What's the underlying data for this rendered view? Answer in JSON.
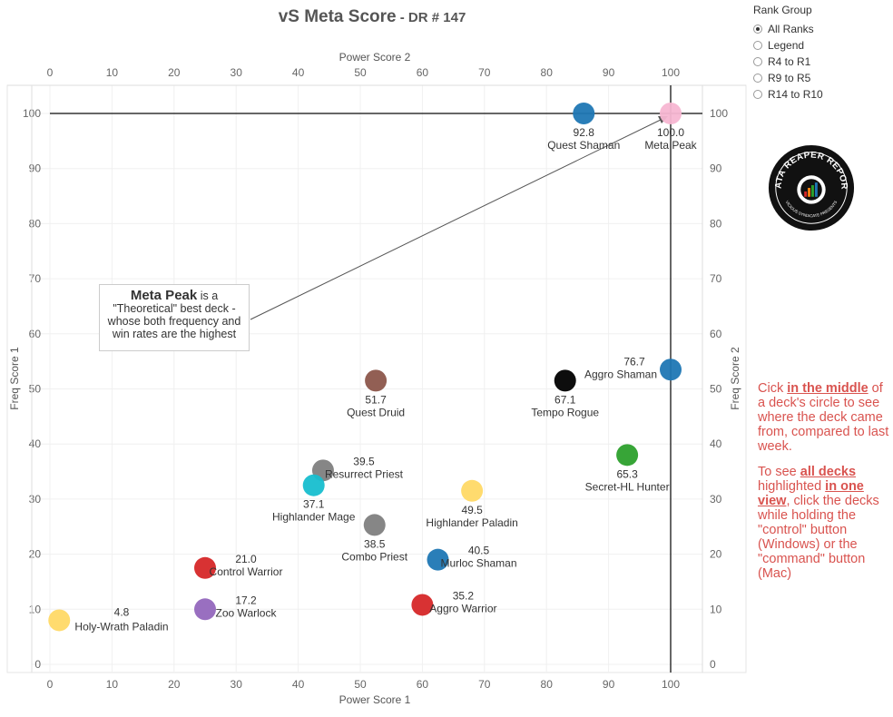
{
  "title": {
    "main": "vS Meta Score",
    "sub": " - DR # 147"
  },
  "rank_group": {
    "title": "Rank Group",
    "options": [
      "All Ranks",
      "Legend",
      "R4 to R1",
      "R9 to R5",
      "R14 to R10"
    ],
    "selected": "All Ranks"
  },
  "callout": {
    "bold": "Meta Peak",
    "text_1": " is a",
    "text_2": "\"Theoretical\" best deck -",
    "text_3": "whose both frequency and",
    "text_4": "win rates are the highest"
  },
  "note": {
    "p1_pre": "Cick ",
    "p1_bold": "in the middle",
    "p1_post": " of a deck's circle to see where the deck came from, compared to last week.",
    "p2_pre": "To see ",
    "p2_bold1": "all decks",
    "p2_mid": " highlighted ",
    "p2_bold2": "in one view",
    "p2_post": ", click the decks while holding the \"control\" button (Windows) or the \"command\" button (Mac)"
  },
  "logo": {
    "text": "DATA REAPER REPORT",
    "subtext": "VICIOUS SYNDICATE PRESENTS"
  },
  "chart_data": {
    "type": "scatter",
    "title": "vS Meta Score - DR # 147",
    "xlabel": "Power Score 1",
    "xlabel_top": "Power Score 2",
    "ylabel": "Freq Score 1",
    "ylabel_right": "Freq Score 2",
    "xlim": [
      -2,
      105
    ],
    "ylim": [
      -1,
      105
    ],
    "xticks": [
      0,
      10,
      20,
      30,
      40,
      50,
      60,
      70,
      80,
      90,
      100
    ],
    "yticks": [
      0,
      10,
      20,
      30,
      40,
      50,
      60,
      70,
      80,
      90,
      100
    ],
    "grid": true,
    "reference_lines": {
      "x": 100,
      "y": 100
    },
    "points": [
      {
        "name": "Quest Shaman",
        "score": "92.8",
        "x": 86,
        "y": 100,
        "color": "#1f77b4"
      },
      {
        "name": "Meta Peak",
        "score": "100.0",
        "x": 100,
        "y": 100,
        "color": "#f7b6d2"
      },
      {
        "name": "Aggro Shaman",
        "score": "76.7",
        "x": 100,
        "y": 53.5,
        "color": "#1f77b4"
      },
      {
        "name": "Tempo Rogue",
        "score": "67.1",
        "x": 83,
        "y": 51.5,
        "color": "#000000"
      },
      {
        "name": "Quest Druid",
        "score": "51.7",
        "x": 52.5,
        "y": 51.5,
        "color": "#8c564b"
      },
      {
        "name": "Secret-HL Hunter",
        "score": "65.3",
        "x": 93,
        "y": 38,
        "color": "#2ca02c"
      },
      {
        "name": "Resurrect Priest",
        "score": "39.5",
        "x": 44,
        "y": 35.2,
        "color": "#7f7f7f"
      },
      {
        "name": "Highlander Mage",
        "score": "37.1",
        "x": 42.5,
        "y": 32.5,
        "color": "#17becf"
      },
      {
        "name": "Highlander Paladin",
        "score": "49.5",
        "x": 68,
        "y": 31.5,
        "color": "#ffd966"
      },
      {
        "name": "Combo Priest",
        "score": "38.5",
        "x": 52.3,
        "y": 25.3,
        "color": "#7f7f7f"
      },
      {
        "name": "Murloc Shaman",
        "score": "40.5",
        "x": 62.5,
        "y": 19,
        "color": "#1f77b4"
      },
      {
        "name": "Control Warrior",
        "score": "21.0",
        "x": 25,
        "y": 17.5,
        "color": "#d62728"
      },
      {
        "name": "Zoo Warlock",
        "score": "17.2",
        "x": 25,
        "y": 10,
        "color": "#9467bd"
      },
      {
        "name": "Aggro Warrior",
        "score": "35.2",
        "x": 60,
        "y": 10.8,
        "color": "#d62728"
      },
      {
        "name": "Holy-Wrath Paladin",
        "score": "4.8",
        "x": 1.5,
        "y": 8,
        "color": "#ffd966"
      }
    ]
  }
}
